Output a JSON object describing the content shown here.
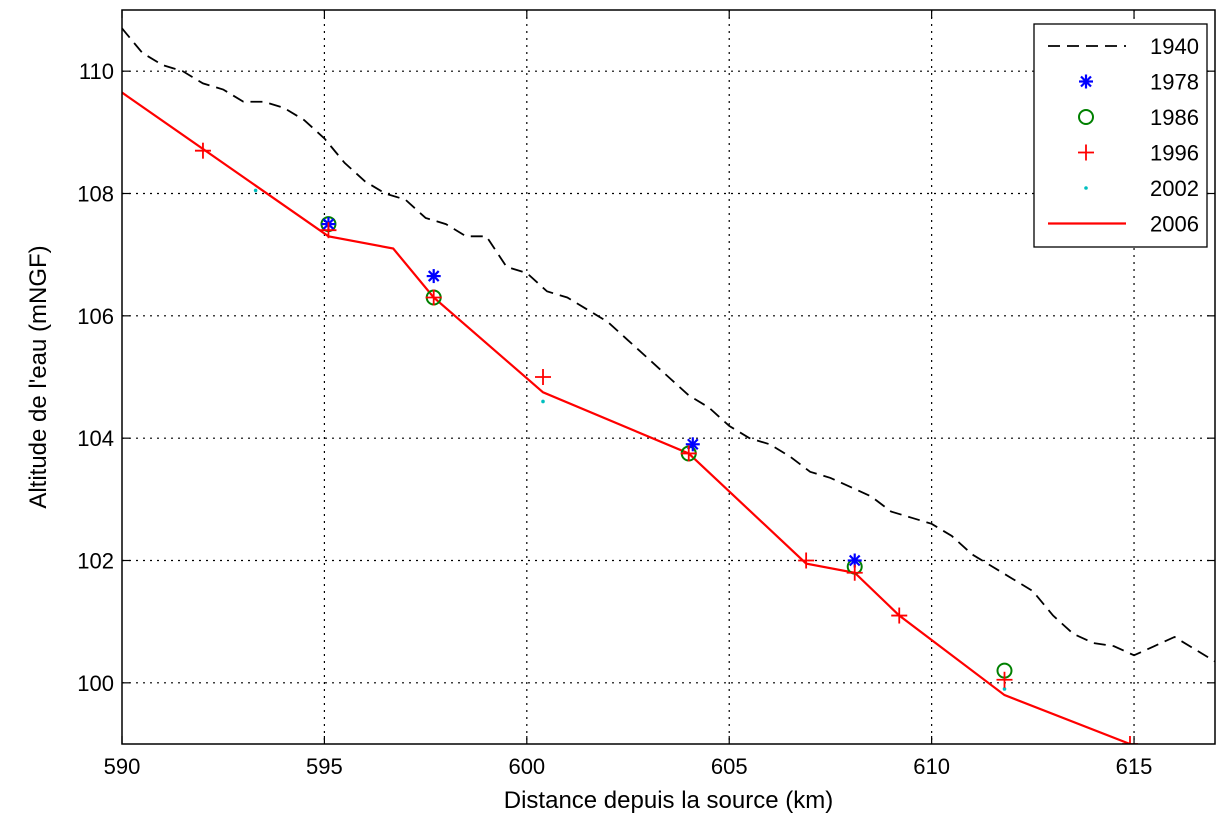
{
  "chart_data": {
    "type": "line",
    "xlabel": "Distance depuis la source (km)",
    "ylabel": "Altitude de l'eau (mNGF)",
    "xlim": [
      590,
      617
    ],
    "ylim": [
      99,
      111
    ],
    "xticks": [
      "590",
      "595",
      "600",
      "605",
      "610",
      "615"
    ],
    "yticks": [
      "100",
      "102",
      "104",
      "106",
      "108",
      "110"
    ],
    "grid": true,
    "legend_position": "top-right",
    "series": [
      {
        "name": "1940",
        "style": "dashed",
        "color": "#000000",
        "x": [
          590,
          590.5,
          591,
          591.5,
          592,
          592.5,
          593,
          593.5,
          594,
          594.5,
          595,
          595.5,
          596,
          596.5,
          597,
          597.5,
          598,
          598.5,
          599,
          599.5,
          600,
          600.5,
          601,
          601.5,
          602,
          602.5,
          603,
          603.5,
          604,
          604.5,
          605,
          605.5,
          606,
          606.5,
          607,
          607.5,
          608,
          608.5,
          609,
          609.5,
          610,
          610.5,
          611,
          611.5,
          612,
          612.5,
          613,
          613.5,
          614,
          614.5,
          615,
          615.5,
          616,
          616.5,
          617
        ],
        "y": [
          110.7,
          110.3,
          110.1,
          110.0,
          109.8,
          109.7,
          109.5,
          109.5,
          109.4,
          109.2,
          108.9,
          108.5,
          108.2,
          108.0,
          107.9,
          107.6,
          107.5,
          107.3,
          107.3,
          106.8,
          106.7,
          106.4,
          106.3,
          106.1,
          105.9,
          105.6,
          105.3,
          105.0,
          104.7,
          104.5,
          104.2,
          104.0,
          103.9,
          103.7,
          103.45,
          103.35,
          103.2,
          103.05,
          102.8,
          102.7,
          102.6,
          102.4,
          102.1,
          101.9,
          101.7,
          101.5,
          101.1,
          100.8,
          100.65,
          100.6,
          100.45,
          100.6,
          100.75,
          100.55,
          100.35
        ]
      },
      {
        "name": "1978",
        "style": "asterisk",
        "color": "#0000ff",
        "x": [
          595.1,
          597.7,
          604.1,
          608.1
        ],
        "y": [
          107.5,
          106.65,
          103.9,
          102.0
        ]
      },
      {
        "name": "1986",
        "style": "circle",
        "color": "#008000",
        "x": [
          595.1,
          597.7,
          604.0,
          608.1,
          611.8
        ],
        "y": [
          107.5,
          106.3,
          103.75,
          101.9,
          100.2
        ]
      },
      {
        "name": "1996",
        "style": "plus",
        "color": "#ff0000",
        "x": [
          592.0,
          595.1,
          597.7,
          600.4,
          604.0,
          606.9,
          608.1,
          609.2,
          611.8,
          614.9
        ],
        "y": [
          108.7,
          107.4,
          106.3,
          105.0,
          103.75,
          102.0,
          101.8,
          101.1,
          100.05,
          99.0
        ]
      },
      {
        "name": "2002",
        "style": "dot",
        "color": "#00bfbf",
        "x": [
          593.3,
          600.4,
          611.8
        ],
        "y": [
          108.05,
          104.6,
          99.9
        ]
      },
      {
        "name": "2006",
        "style": "solid",
        "color": "#ff0000",
        "x": [
          590.0,
          595.1,
          596.7,
          597.7,
          600.4,
          604.0,
          606.9,
          608.1,
          609.2,
          611.8,
          614.9
        ],
        "y": [
          109.65,
          107.3,
          107.1,
          106.3,
          104.75,
          103.75,
          101.95,
          101.8,
          101.1,
          99.8,
          99.0
        ]
      }
    ]
  }
}
